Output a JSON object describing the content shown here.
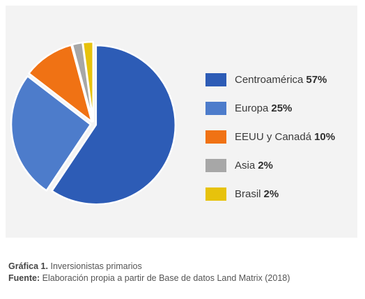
{
  "chart_data": {
    "type": "pie",
    "categories": [
      "Centroamérica",
      "Europa",
      "EEUU y Canadá",
      "Asia",
      "Brasil"
    ],
    "values": [
      57,
      25,
      10,
      2,
      2
    ],
    "value_labels": [
      "57%",
      "25%",
      "10%",
      "2%",
      "2%"
    ],
    "colors": [
      "#2d5cb6",
      "#4d7ccb",
      "#f07214",
      "#a7a7a7",
      "#e7c20c"
    ],
    "legend_position": "right"
  },
  "caption": {
    "figure_label": "Gráfica 1.",
    "figure_title": "Inversionistas primarios",
    "source_label": "Fuente:",
    "source_text": "Elaboración propia a partir de Base de datos Land Matrix (2018)"
  }
}
